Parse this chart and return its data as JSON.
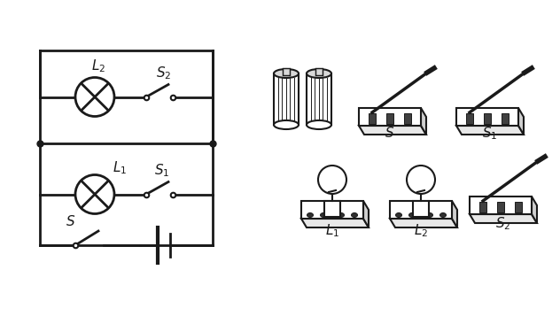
{
  "bg_color": "#ffffff",
  "line_color": "#1a1a1a",
  "line_width": 2.0,
  "fig_width": 6.32,
  "fig_height": 3.57,
  "dpi": 100
}
